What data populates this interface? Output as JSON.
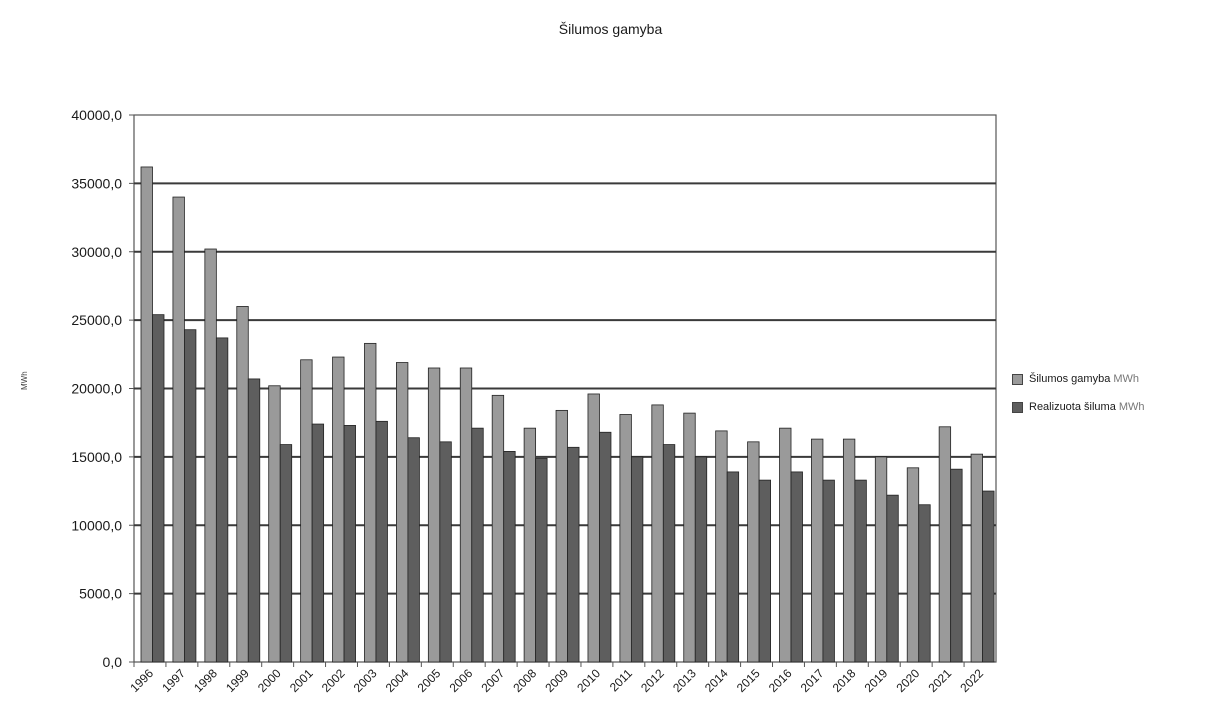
{
  "chart_data": {
    "type": "bar",
    "title": "Šilumos gamyba",
    "ylabel": "MWh",
    "ylim": [
      0,
      40000
    ],
    "yticks": [
      "0,0",
      "5000,0",
      "10000,0",
      "15000,0",
      "20000,0",
      "25000,0",
      "30000,0",
      "35000,0",
      "40000,0"
    ],
    "grid": true,
    "legend_position": "right",
    "categories": [
      "1996",
      "1997",
      "1998",
      "1999",
      "2000",
      "2001",
      "2002",
      "2003",
      "2004",
      "2005",
      "2006",
      "2007",
      "2008",
      "2009",
      "2010",
      "2011",
      "2012",
      "2013",
      "2014",
      "2015",
      "2016",
      "2017",
      "2018",
      "2019",
      "2020",
      "2021",
      "2022"
    ],
    "series": [
      {
        "name": "Šilumos gamyba",
        "unit": "MWh",
        "color": "#9a9a9a",
        "values": [
          36200,
          34000,
          30200,
          26000,
          20200,
          22100,
          22300,
          23300,
          21900,
          21500,
          21500,
          19500,
          17100,
          18400,
          19600,
          18100,
          18800,
          18200,
          16900,
          16100,
          17100,
          16300,
          16300,
          15000,
          14200,
          17200,
          15200
        ]
      },
      {
        "name": "Realizuota šiluma",
        "unit": "MWh",
        "color": "#5e5e5e",
        "values": [
          25400,
          24300,
          23700,
          20700,
          15900,
          17400,
          17300,
          17600,
          16400,
          16100,
          17100,
          15400,
          14900,
          15700,
          16800,
          15000,
          15900,
          15000,
          13900,
          13300,
          13900,
          13300,
          13300,
          12200,
          11500,
          14100,
          12500
        ]
      }
    ]
  }
}
